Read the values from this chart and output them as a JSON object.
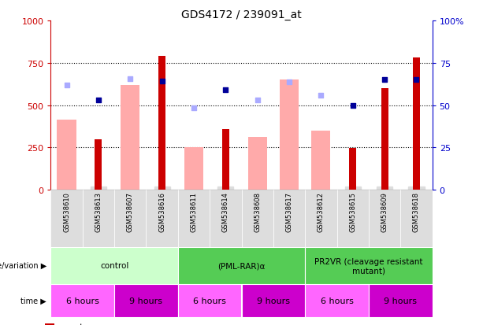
{
  "title": "GDS4172 / 239091_at",
  "samples": [
    "GSM538610",
    "GSM538613",
    "GSM538607",
    "GSM538616",
    "GSM538611",
    "GSM538614",
    "GSM538608",
    "GSM538617",
    "GSM538612",
    "GSM538615",
    "GSM538609",
    "GSM538618"
  ],
  "count_bars": [
    null,
    300,
    null,
    790,
    null,
    360,
    null,
    null,
    null,
    245,
    600,
    780
  ],
  "value_bars": [
    415,
    null,
    620,
    null,
    250,
    null,
    310,
    650,
    350,
    null,
    null,
    null
  ],
  "percentile_rank_dots": [
    null,
    530,
    null,
    640,
    null,
    590,
    null,
    null,
    null,
    500,
    650,
    650
  ],
  "rank_absent_dots": [
    620,
    null,
    655,
    null,
    485,
    null,
    530,
    635,
    560,
    null,
    null,
    null
  ],
  "groups": [
    {
      "label": "control",
      "start": 0,
      "end": 4,
      "color": "#ccffcc"
    },
    {
      "label": "(PML-RAR)α",
      "start": 4,
      "end": 8,
      "color": "#44cc44"
    },
    {
      "label": "PR2VR (cleavage resistant\nmutant)",
      "start": 8,
      "end": 12,
      "color": "#44cc44"
    }
  ],
  "time_groups": [
    {
      "label": "6 hours",
      "start": 0,
      "end": 2
    },
    {
      "label": "9 hours",
      "start": 2,
      "end": 4
    },
    {
      "label": "6 hours",
      "start": 4,
      "end": 6
    },
    {
      "label": "9 hours",
      "start": 6,
      "end": 8
    },
    {
      "label": "6 hours",
      "start": 8,
      "end": 10
    },
    {
      "label": "9 hours",
      "start": 10,
      "end": 12
    }
  ],
  "time_color_6": "#ff66ff",
  "time_color_9": "#cc00cc",
  "ylim": [
    0,
    1000
  ],
  "yticks_left": [
    0,
    250,
    500,
    750,
    1000
  ],
  "yticks_right": [
    0,
    25,
    50,
    75,
    100
  ],
  "left_axis_color": "#cc0000",
  "right_axis_color": "#0000cc",
  "count_color": "#cc0000",
  "value_color": "#ffaaaa",
  "rank_dot_color": "#000099",
  "rank_absent_dot_color": "#aaaaff",
  "background_color": "#ffffff",
  "xtick_bg": "#dddddd"
}
